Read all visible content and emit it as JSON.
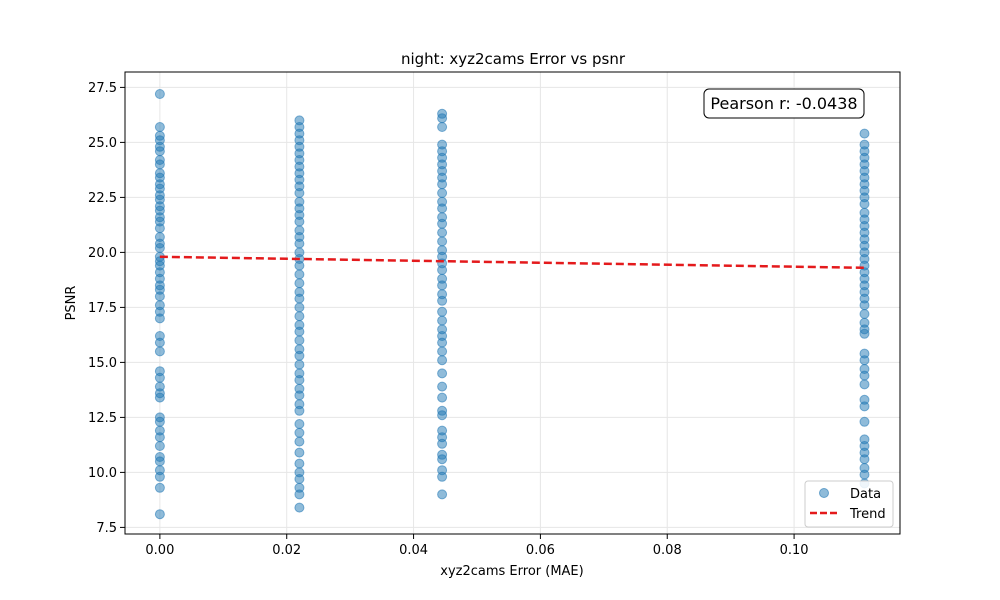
{
  "chart_data": {
    "type": "scatter",
    "title": "night: xyz2cams Error vs psnr",
    "xlabel": "xyz2cams Error (MAE)",
    "ylabel": "PSNR",
    "xlim": [
      -0.0055,
      0.1167
    ],
    "ylim": [
      7.2,
      28.2
    ],
    "xticks": [
      0.0,
      0.02,
      0.04,
      0.06,
      0.08,
      0.1
    ],
    "xtick_labels": [
      "0.00",
      "0.02",
      "0.04",
      "0.06",
      "0.08",
      "0.10"
    ],
    "yticks": [
      7.5,
      10.0,
      12.5,
      15.0,
      17.5,
      20.0,
      22.5,
      25.0,
      27.5
    ],
    "ytick_labels": [
      "7.5",
      "10.0",
      "12.5",
      "15.0",
      "17.5",
      "20.0",
      "22.5",
      "25.0",
      "27.5"
    ],
    "grid": true,
    "legend_position": "lower-right",
    "legend": [
      "Data",
      "Trend"
    ],
    "annotation": "Pearson r: -0.0438",
    "colors": {
      "data": "#1f77b4",
      "trend": "#e41a1c"
    },
    "series": [
      {
        "name": "Data",
        "kind": "scatter",
        "points": [
          [
            0.0,
            27.2
          ],
          [
            0.0,
            25.7
          ],
          [
            0.0,
            25.3
          ],
          [
            0.0,
            25.1
          ],
          [
            0.0,
            24.8
          ],
          [
            0.0,
            24.6
          ],
          [
            0.0,
            24.2
          ],
          [
            0.0,
            24.0
          ],
          [
            0.0,
            23.6
          ],
          [
            0.0,
            23.4
          ],
          [
            0.0,
            23.1
          ],
          [
            0.0,
            22.9
          ],
          [
            0.0,
            22.6
          ],
          [
            0.0,
            22.4
          ],
          [
            0.0,
            22.1
          ],
          [
            0.0,
            21.9
          ],
          [
            0.0,
            21.6
          ],
          [
            0.0,
            21.4
          ],
          [
            0.0,
            21.1
          ],
          [
            0.0,
            20.7
          ],
          [
            0.0,
            20.4
          ],
          [
            0.0,
            20.2
          ],
          [
            0.0,
            19.8
          ],
          [
            0.0,
            19.6
          ],
          [
            0.0,
            19.4
          ],
          [
            0.0,
            19.1
          ],
          [
            0.0,
            18.8
          ],
          [
            0.0,
            18.5
          ],
          [
            0.0,
            18.3
          ],
          [
            0.0,
            18.0
          ],
          [
            0.0,
            17.6
          ],
          [
            0.0,
            17.3
          ],
          [
            0.0,
            17.0
          ],
          [
            0.0,
            16.2
          ],
          [
            0.0,
            15.9
          ],
          [
            0.0,
            15.5
          ],
          [
            0.0,
            14.6
          ],
          [
            0.0,
            14.3
          ],
          [
            0.0,
            13.9
          ],
          [
            0.0,
            13.6
          ],
          [
            0.0,
            13.4
          ],
          [
            0.0,
            12.5
          ],
          [
            0.0,
            12.3
          ],
          [
            0.0,
            11.9
          ],
          [
            0.0,
            11.6
          ],
          [
            0.0,
            11.2
          ],
          [
            0.0,
            10.7
          ],
          [
            0.0,
            10.5
          ],
          [
            0.0,
            10.1
          ],
          [
            0.0,
            9.8
          ],
          [
            0.0,
            9.3
          ],
          [
            0.0,
            8.1
          ],
          [
            0.022,
            26.0
          ],
          [
            0.022,
            25.7
          ],
          [
            0.022,
            25.4
          ],
          [
            0.022,
            25.1
          ],
          [
            0.022,
            24.8
          ],
          [
            0.022,
            24.5
          ],
          [
            0.022,
            24.2
          ],
          [
            0.022,
            23.9
          ],
          [
            0.022,
            23.6
          ],
          [
            0.022,
            23.3
          ],
          [
            0.022,
            23.0
          ],
          [
            0.022,
            22.7
          ],
          [
            0.022,
            22.3
          ],
          [
            0.022,
            22.0
          ],
          [
            0.022,
            21.7
          ],
          [
            0.022,
            21.4
          ],
          [
            0.022,
            21.0
          ],
          [
            0.022,
            20.7
          ],
          [
            0.022,
            20.4
          ],
          [
            0.022,
            20.0
          ],
          [
            0.022,
            19.7
          ],
          [
            0.022,
            19.4
          ],
          [
            0.022,
            19.0
          ],
          [
            0.022,
            18.6
          ],
          [
            0.022,
            18.2
          ],
          [
            0.022,
            17.9
          ],
          [
            0.022,
            17.5
          ],
          [
            0.022,
            17.1
          ],
          [
            0.022,
            16.7
          ],
          [
            0.022,
            16.4
          ],
          [
            0.022,
            16.0
          ],
          [
            0.022,
            15.6
          ],
          [
            0.022,
            15.3
          ],
          [
            0.022,
            14.9
          ],
          [
            0.022,
            14.5
          ],
          [
            0.022,
            14.2
          ],
          [
            0.022,
            13.8
          ],
          [
            0.022,
            13.5
          ],
          [
            0.022,
            13.1
          ],
          [
            0.022,
            12.8
          ],
          [
            0.022,
            12.2
          ],
          [
            0.022,
            11.8
          ],
          [
            0.022,
            11.4
          ],
          [
            0.022,
            10.9
          ],
          [
            0.022,
            10.4
          ],
          [
            0.022,
            10.0
          ],
          [
            0.022,
            9.7
          ],
          [
            0.022,
            9.3
          ],
          [
            0.022,
            9.0
          ],
          [
            0.022,
            8.4
          ],
          [
            0.0445,
            26.3
          ],
          [
            0.0445,
            26.1
          ],
          [
            0.0445,
            25.7
          ],
          [
            0.0445,
            24.9
          ],
          [
            0.0445,
            24.6
          ],
          [
            0.0445,
            24.3
          ],
          [
            0.0445,
            24.0
          ],
          [
            0.0445,
            23.7
          ],
          [
            0.0445,
            23.4
          ],
          [
            0.0445,
            23.1
          ],
          [
            0.0445,
            22.7
          ],
          [
            0.0445,
            22.3
          ],
          [
            0.0445,
            22.0
          ],
          [
            0.0445,
            21.6
          ],
          [
            0.0445,
            21.3
          ],
          [
            0.0445,
            20.9
          ],
          [
            0.0445,
            20.5
          ],
          [
            0.0445,
            20.1
          ],
          [
            0.0445,
            19.8
          ],
          [
            0.0445,
            19.5
          ],
          [
            0.0445,
            19.2
          ],
          [
            0.0445,
            18.8
          ],
          [
            0.0445,
            18.5
          ],
          [
            0.0445,
            18.1
          ],
          [
            0.0445,
            17.8
          ],
          [
            0.0445,
            17.3
          ],
          [
            0.0445,
            16.9
          ],
          [
            0.0445,
            16.5
          ],
          [
            0.0445,
            16.2
          ],
          [
            0.0445,
            15.9
          ],
          [
            0.0445,
            15.5
          ],
          [
            0.0445,
            15.1
          ],
          [
            0.0445,
            14.5
          ],
          [
            0.0445,
            13.9
          ],
          [
            0.0445,
            13.4
          ],
          [
            0.0445,
            12.8
          ],
          [
            0.0445,
            12.6
          ],
          [
            0.0445,
            11.9
          ],
          [
            0.0445,
            11.6
          ],
          [
            0.0445,
            11.3
          ],
          [
            0.0445,
            10.8
          ],
          [
            0.0445,
            10.6
          ],
          [
            0.0445,
            10.1
          ],
          [
            0.0445,
            9.8
          ],
          [
            0.0445,
            9.0
          ],
          [
            0.1111,
            25.4
          ],
          [
            0.1111,
            24.9
          ],
          [
            0.1111,
            24.6
          ],
          [
            0.1111,
            24.3
          ],
          [
            0.1111,
            24.0
          ],
          [
            0.1111,
            23.7
          ],
          [
            0.1111,
            23.4
          ],
          [
            0.1111,
            23.1
          ],
          [
            0.1111,
            22.8
          ],
          [
            0.1111,
            22.5
          ],
          [
            0.1111,
            22.2
          ],
          [
            0.1111,
            21.8
          ],
          [
            0.1111,
            21.5
          ],
          [
            0.1111,
            21.2
          ],
          [
            0.1111,
            20.9
          ],
          [
            0.1111,
            20.6
          ],
          [
            0.1111,
            20.3
          ],
          [
            0.1111,
            20.0
          ],
          [
            0.1111,
            19.7
          ],
          [
            0.1111,
            19.4
          ],
          [
            0.1111,
            19.1
          ],
          [
            0.1111,
            18.8
          ],
          [
            0.1111,
            18.5
          ],
          [
            0.1111,
            18.2
          ],
          [
            0.1111,
            17.9
          ],
          [
            0.1111,
            17.6
          ],
          [
            0.1111,
            17.2
          ],
          [
            0.1111,
            16.8
          ],
          [
            0.1111,
            16.5
          ],
          [
            0.1111,
            16.3
          ],
          [
            0.1111,
            15.4
          ],
          [
            0.1111,
            15.1
          ],
          [
            0.1111,
            14.7
          ],
          [
            0.1111,
            14.4
          ],
          [
            0.1111,
            14.0
          ],
          [
            0.1111,
            13.3
          ],
          [
            0.1111,
            13.0
          ],
          [
            0.1111,
            12.3
          ],
          [
            0.1111,
            11.5
          ],
          [
            0.1111,
            11.2
          ],
          [
            0.1111,
            10.9
          ],
          [
            0.1111,
            10.6
          ],
          [
            0.1111,
            10.2
          ],
          [
            0.1111,
            9.9
          ],
          [
            0.1111,
            9.5
          ]
        ]
      },
      {
        "name": "Trend",
        "kind": "line",
        "points": [
          [
            0.0,
            19.8
          ],
          [
            0.1111,
            19.3
          ]
        ]
      }
    ]
  }
}
